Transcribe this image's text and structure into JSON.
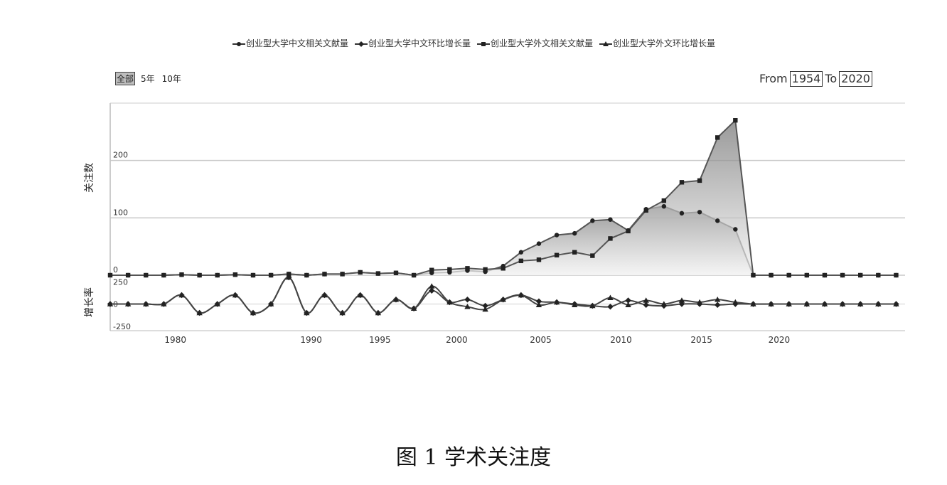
{
  "legend": [
    {
      "label": "创业型大学中文相关文献量",
      "marker": "circle",
      "color": "#333333"
    },
    {
      "label": "创业型大学中文环比增长量",
      "marker": "diamond",
      "color": "#333333"
    },
    {
      "label": "创业型大学外文相关文献量",
      "marker": "square",
      "color": "#333333"
    },
    {
      "label": "创业型大学外文环比增长量",
      "marker": "triangle",
      "color": "#333333"
    }
  ],
  "range_selector": {
    "options": [
      "全部",
      "5年",
      "10年"
    ],
    "active": "全部"
  },
  "date_range": {
    "from_label": "From",
    "from": "1954",
    "to_label": "To",
    "to": "2020"
  },
  "caption": "图 1 学术关注度",
  "chart_data": {
    "type": "line",
    "x_ticks": [
      "1980",
      "1990",
      "1995",
      "2000",
      "2005",
      "2010",
      "2015",
      "2020"
    ],
    "x_tick_values": [
      1979.65,
      1987.25,
      1991.1,
      1995.4,
      2000.1,
      2004.6,
      2009.1,
      2013.45
    ],
    "top_panel": {
      "ylabel": "关注数",
      "ylim": [
        0,
        300
      ],
      "y_ticks": [
        0,
        100,
        200
      ],
      "series": [
        {
          "name": "创业型大学中文相关文献量",
          "marker": "circle",
          "x": [
            1976,
            1977,
            1978,
            1979,
            1980,
            1981,
            1982,
            1983,
            1984,
            1985,
            1986,
            1987,
            1988,
            1989,
            1990,
            1991,
            1992,
            1993,
            1994,
            1995,
            1996,
            1997,
            1998,
            1999,
            2000,
            2001,
            2002,
            2003,
            2004,
            2005,
            2006,
            2007,
            2008,
            2009,
            2010,
            2011,
            2012,
            2013,
            2014,
            2015,
            2016,
            2017,
            2018,
            2019,
            2020
          ],
          "y": [
            0,
            0,
            0,
            0,
            1,
            0,
            0,
            1,
            0,
            0,
            2,
            0,
            2,
            2,
            5,
            3,
            4,
            0,
            4,
            5,
            8,
            6,
            16,
            40,
            55,
            70,
            73,
            95,
            97,
            78,
            115,
            120,
            108,
            110,
            95,
            80,
            0,
            0,
            0,
            0,
            0,
            0,
            0,
            0,
            0
          ]
        },
        {
          "name": "创业型大学外文相关文献量",
          "marker": "square",
          "x": [
            1976,
            1977,
            1978,
            1979,
            1980,
            1981,
            1982,
            1983,
            1984,
            1985,
            1986,
            1987,
            1988,
            1989,
            1990,
            1991,
            1992,
            1993,
            1994,
            1995,
            1996,
            1997,
            1998,
            1999,
            2000,
            2001,
            2002,
            2003,
            2004,
            2005,
            2006,
            2007,
            2008,
            2009,
            2010,
            2011,
            2012,
            2013,
            2014,
            2015,
            2016,
            2017,
            2018,
            2019,
            2020
          ],
          "y": [
            0,
            0,
            0,
            0,
            1,
            0,
            0,
            1,
            0,
            0,
            2,
            0,
            2,
            2,
            5,
            3,
            4,
            0,
            9,
            10,
            12,
            10,
            12,
            25,
            27,
            35,
            40,
            34,
            64,
            77,
            113,
            130,
            162,
            165,
            240,
            270,
            0,
            0,
            0,
            0,
            0,
            0,
            0,
            0,
            0
          ]
        }
      ]
    },
    "bottom_panel": {
      "ylabel": "增长率",
      "ylim": [
        -300,
        300
      ],
      "y_ticks": [
        -250,
        0,
        250
      ],
      "series": [
        {
          "name": "创业型大学中文环比增长量",
          "marker": "diamond",
          "x": [
            1976,
            1977,
            1978,
            1979,
            1980,
            1981,
            1982,
            1983,
            1984,
            1985,
            1986,
            1987,
            1988,
            1989,
            1990,
            1991,
            1992,
            1993,
            1994,
            1995,
            1996,
            1997,
            1998,
            1999,
            2000,
            2001,
            2002,
            2003,
            2004,
            2005,
            2006,
            2007,
            2008,
            2009,
            2010,
            2011,
            2012,
            2013,
            2014,
            2015,
            2016,
            2017,
            2018,
            2019,
            2020
          ],
          "y": [
            0,
            0,
            0,
            0,
            100,
            -100,
            0,
            100,
            -100,
            0,
            300,
            -100,
            100,
            -100,
            100,
            -100,
            50,
            -50,
            150,
            20,
            50,
            -20,
            50,
            100,
            30,
            20,
            0,
            -20,
            -30,
            40,
            -10,
            -20,
            0,
            0,
            -10,
            0,
            0,
            0,
            0,
            0,
            0,
            0,
            0,
            0,
            0
          ]
        },
        {
          "name": "创业型大学外文环比增长量",
          "marker": "triangle",
          "x": [
            1976,
            1977,
            1978,
            1979,
            1980,
            1981,
            1982,
            1983,
            1984,
            1985,
            1986,
            1987,
            1988,
            1989,
            1990,
            1991,
            1992,
            1993,
            1994,
            1995,
            1996,
            1997,
            1998,
            1999,
            2000,
            2001,
            2002,
            2003,
            2004,
            2005,
            2006,
            2007,
            2008,
            2009,
            2010,
            2011,
            2012,
            2013,
            2014,
            2015,
            2016,
            2017,
            2018,
            2019,
            2020
          ],
          "y": [
            0,
            0,
            0,
            0,
            100,
            -100,
            0,
            100,
            -100,
            0,
            300,
            -100,
            100,
            -100,
            100,
            -100,
            50,
            -50,
            200,
            20,
            -30,
            -60,
            50,
            100,
            -10,
            20,
            -10,
            -20,
            70,
            -10,
            40,
            0,
            40,
            20,
            50,
            20,
            0,
            0,
            0,
            0,
            0,
            0,
            0,
            0,
            0
          ]
        }
      ]
    },
    "grid": true,
    "legend_position": "top-center"
  }
}
